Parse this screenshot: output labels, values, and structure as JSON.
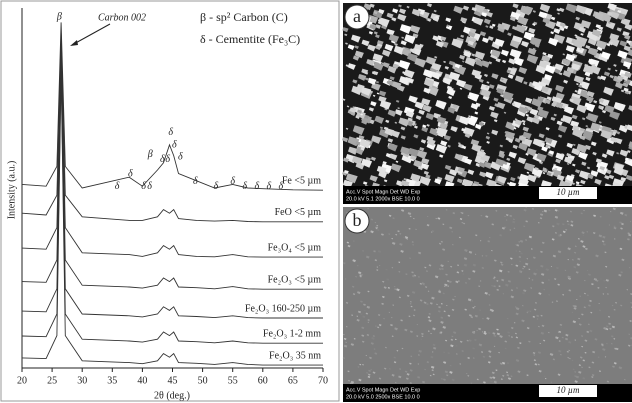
{
  "chart_data": {
    "type": "line",
    "xlabel": "2θ (deg.)",
    "ylabel": "Intensity (a.u.)",
    "xlim": [
      20,
      70
    ],
    "xticks": [
      20,
      25,
      30,
      35,
      40,
      45,
      50,
      55,
      60,
      65,
      70
    ],
    "ylim": [
      0,
      100
    ],
    "x": [
      20,
      24,
      25.8,
      26.5,
      27.2,
      30,
      37.8,
      40,
      42.5,
      43.5,
      44.5,
      45.2,
      46,
      49,
      52,
      55,
      57.5,
      60,
      65,
      70
    ],
    "series": [
      {
        "name": "Fe <5 µm",
        "color": "#333333",
        "values": [
          51,
          50.5,
          56,
          96,
          56,
          50,
          53,
          50.5,
          55,
          57,
          62,
          59,
          54,
          52,
          50,
          51,
          50,
          49.8,
          49.5,
          49.4
        ]
      },
      {
        "name": "FeO <5 µm",
        "color": "#333333",
        "values": [
          43,
          42.5,
          48,
          93,
          48,
          42,
          41,
          41,
          42,
          44,
          43,
          44,
          41.5,
          41,
          40.8,
          41,
          40.7,
          40.6,
          40.6,
          40.6
        ]
      },
      {
        "name": "Fe₃O₄ <5 µm",
        "color": "#333333",
        "values": [
          33.3,
          33,
          39,
          90,
          39,
          32,
          31.5,
          31,
          32,
          34,
          33,
          34,
          31.5,
          31,
          30.9,
          31.5,
          30.9,
          30.8,
          30.8,
          30.8
        ]
      },
      {
        "name": "Fe₂O₃ <5 µm",
        "color": "#333333",
        "values": [
          24,
          23.8,
          30,
          88,
          30,
          23,
          22.5,
          22.2,
          23,
          25,
          24,
          25,
          22.5,
          22.3,
          22,
          22.6,
          22,
          21.9,
          21.9,
          21.9
        ]
      },
      {
        "name": "Fe₂O₃ 160-250 µm",
        "color": "#333333",
        "values": [
          15.8,
          15.6,
          22,
          86,
          22,
          15,
          14.5,
          14.2,
          15,
          17,
          16,
          17,
          14.5,
          14.3,
          14,
          14.5,
          14,
          13.9,
          13.9,
          13.9
        ]
      },
      {
        "name": "Fe₂O₃ 1-2 mm",
        "color": "#333333",
        "values": [
          8.9,
          8.7,
          15,
          84,
          15,
          8,
          7.5,
          7.2,
          8,
          10,
          9,
          10,
          7.5,
          7.3,
          7,
          7.5,
          7,
          6.9,
          6.9,
          6.9
        ]
      },
      {
        "name": "Fe₂O₃ 35 nm",
        "color": "#333333",
        "values": [
          2.8,
          2.6,
          9,
          82,
          9,
          2,
          1.5,
          1.2,
          2,
          4,
          3,
          4,
          1.5,
          1.3,
          1,
          1.5,
          1,
          0.8,
          0.8,
          0.8
        ]
      }
    ],
    "peak_labels": [
      {
        "label": "β",
        "x": 26.2,
        "y": 97.5
      },
      {
        "label": "δ",
        "x": 35.8,
        "y": 50.3
      },
      {
        "label": "δ",
        "x": 38,
        "y": 53.9
      },
      {
        "label": "δ",
        "x": 40.2,
        "y": 50.3
      },
      {
        "label": "δ",
        "x": 41.2,
        "y": 50.3
      },
      {
        "label": "β",
        "x": 41.3,
        "y": 59.2
      },
      {
        "label": "δ",
        "x": 43.3,
        "y": 57.8
      },
      {
        "label": "δ",
        "x": 44.2,
        "y": 57.8
      },
      {
        "label": "δ",
        "x": 44.7,
        "y": 65.3
      },
      {
        "label": "δ",
        "x": 45.3,
        "y": 61.9
      },
      {
        "label": "δ",
        "x": 46.3,
        "y": 58.6
      },
      {
        "label": "δ",
        "x": 48.8,
        "y": 51.7
      },
      {
        "label": "δ",
        "x": 52.2,
        "y": 50.3
      },
      {
        "label": "δ",
        "x": 55,
        "y": 51.7
      },
      {
        "label": "δ",
        "x": 57,
        "y": 50.3
      },
      {
        "label": "δ",
        "x": 59,
        "y": 50.3
      },
      {
        "label": "δ",
        "x": 61,
        "y": 50.3
      },
      {
        "label": "δ",
        "x": 63,
        "y": 50.3
      }
    ],
    "annotation": "Carbon 002",
    "legend_notes": [
      "β - sp² Carbon (C)",
      "δ - Cementite (Fe₃C)"
    ]
  },
  "images": [
    {
      "label": "a",
      "info_header": "Acc.V  Spot Magn   Det  WD  Exp",
      "info_values": "20.0 kV 5.1  2000x  BSE 10.0  0",
      "scale": "10 µm"
    },
    {
      "label": "b",
      "info_header": "Acc.V  Spot Magn   Det  WD  Exp",
      "info_values": "20.0 kV 5.0  2500x  BSE 10.0  0",
      "scale": "10 µm"
    }
  ]
}
